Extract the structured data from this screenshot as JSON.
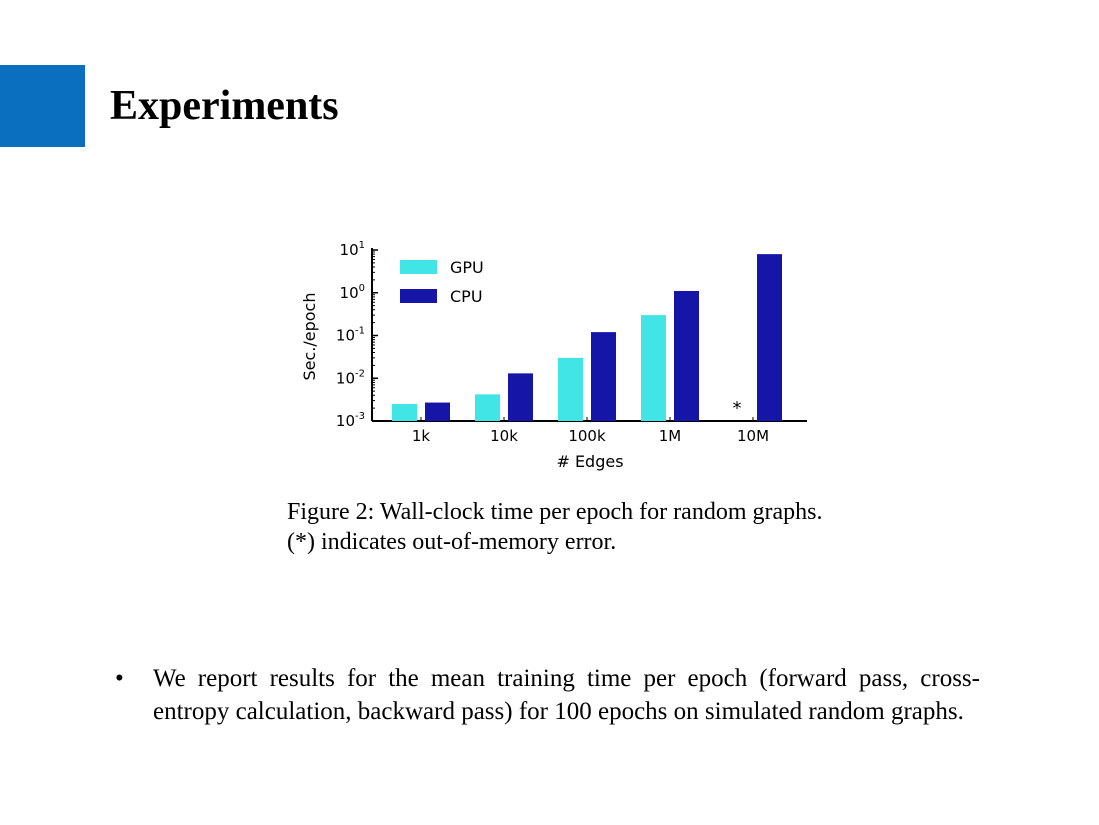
{
  "slide": {
    "title": "Experiments",
    "accent_color": "#0B6FBF"
  },
  "figure": {
    "caption": "Figure 2: Wall-clock time per epoch for random graphs. (*) indicates out-of-memory error."
  },
  "chart_data": {
    "type": "bar",
    "categories": [
      "1k",
      "10k",
      "100k",
      "1M",
      "10M"
    ],
    "xlabel": "# Edges",
    "ylabel": "Sec./epoch",
    "yscale": "log",
    "ylim": [
      0.001,
      10
    ],
    "yticks": [
      {
        "value": 10,
        "base": "10",
        "exp": "1"
      },
      {
        "value": 1,
        "base": "10",
        "exp": "0"
      },
      {
        "value": 0.1,
        "base": "10",
        "exp": "-1"
      },
      {
        "value": 0.01,
        "base": "10",
        "exp": "-2"
      },
      {
        "value": 0.001,
        "base": "10",
        "exp": "-3"
      }
    ],
    "legend_position": "top-left",
    "grid": false,
    "series": [
      {
        "name": "GPU",
        "color": "#41E5E5",
        "values": [
          0.0025,
          0.0042,
          0.03,
          0.3,
          null
        ]
      },
      {
        "name": "CPU",
        "color": "#1515A8",
        "values": [
          0.0027,
          0.013,
          0.12,
          1.1,
          8.0
        ]
      }
    ],
    "annotations": [
      {
        "category": "10M",
        "series": "GPU",
        "text": "*"
      }
    ]
  },
  "bullets": [
    {
      "marker": "•",
      "text": "We report results for the mean training time per epoch (forward pass, cross-entropy calculation, backward pass) for 100 epochs on simulated random graphs."
    }
  ]
}
